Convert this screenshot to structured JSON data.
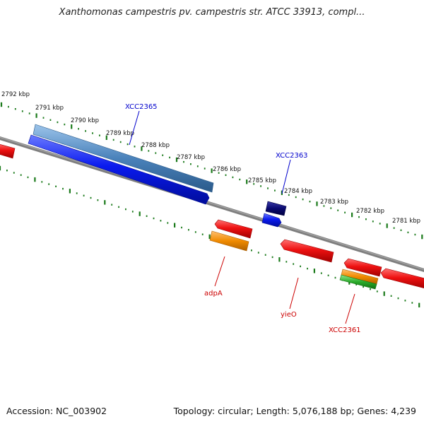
{
  "title": "Xanthomonas campestris pv. campestris str. ATCC 33913, compl...",
  "footer": {
    "accession": "Accession: NC_003902",
    "summary": "Topology: circular; Length: 5,076,188 bp; Genes: 4,239"
  },
  "colors": {
    "backbone": "#808080",
    "tick": "#1a7a1a",
    "forward_label": "#0000cc",
    "reverse_label": "#cc0000",
    "red_feature": "#ee1111",
    "blue_feature": "#0a1aee",
    "steelblue_feature": "#4a82bb",
    "navy_feature": "#0a0a70",
    "orange_feature": "#f08a00",
    "green_feature": "#2aaa2a"
  },
  "scale_labels": [
    "2792 kbp",
    "2791 kbp",
    "2790 kbp",
    "2789 kbp",
    "2788 kbp",
    "2787 kbp",
    "2786 kbp",
    "2785 kbp",
    "2784 kbp",
    "2783 kbp",
    "2782 kbp",
    "2781 kbp"
  ],
  "gene_labels": {
    "XCC2365": "XCC2365",
    "XCC2363": "XCC2363",
    "adpA": "adpA",
    "yieO": "yieO",
    "XCC2361": "XCC2361"
  }
}
